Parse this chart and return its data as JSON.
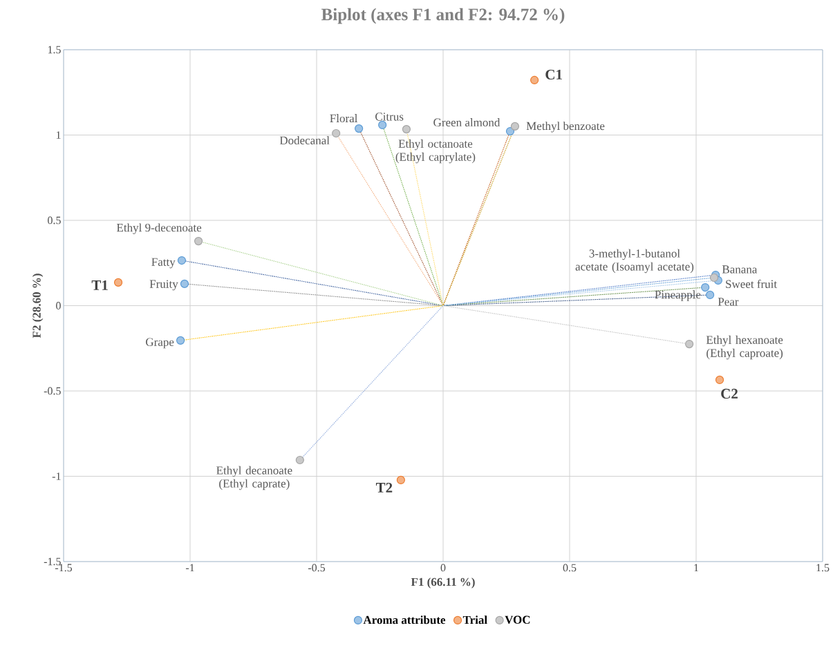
{
  "chart_data": {
    "type": "scatter",
    "title": "Biplot (axes F1 and F2: 94.72 %)",
    "xlabel": "F1 (66.11 %)",
    "ylabel": "F2 (28.60 %)",
    "xlim": [
      -1.5,
      1.5
    ],
    "ylim": [
      -1.5,
      1.5
    ],
    "xticks": [
      -1.5,
      -1,
      -0.5,
      0,
      0.5,
      1,
      1.5
    ],
    "yticks": [
      -1.5,
      -1,
      -0.5,
      0,
      0.5,
      1,
      1.5
    ],
    "grid": true,
    "legend": "bottom",
    "marker": "circle",
    "series": [
      {
        "type": "line",
        "line_style": "dotted",
        "marker": "none",
        "color": "#a0522d",
        "x": [
          0,
          -0.333
        ],
        "values": [
          0,
          1.038
        ]
      },
      {
        "type": "line",
        "line_style": "dotted",
        "marker": "none",
        "color": "#70ad47",
        "x": [
          0,
          -0.24
        ],
        "values": [
          0,
          1.059
        ]
      },
      {
        "type": "line",
        "line_style": "dotted",
        "marker": "none",
        "color": "#c55a11",
        "x": [
          0,
          0.265
        ],
        "values": [
          0,
          1.022
        ]
      },
      {
        "type": "line",
        "line_style": "dotted",
        "marker": "none",
        "color": "#2f5597",
        "x": [
          0,
          -1.033
        ],
        "values": [
          0,
          0.265
        ]
      },
      {
        "type": "line",
        "line_style": "dotted",
        "marker": "none",
        "color": "#7f7f7f",
        "x": [
          0,
          -1.022
        ],
        "values": [
          0,
          0.128
        ]
      },
      {
        "type": "line",
        "line_style": "dotted",
        "marker": "none",
        "color": "#ffc000",
        "x": [
          0,
          -1.038
        ],
        "values": [
          0,
          -0.204
        ]
      },
      {
        "type": "line",
        "line_style": "dotted",
        "marker": "none",
        "color": "#4472c4",
        "x": [
          0,
          1.077
        ],
        "values": [
          0,
          0.18
        ]
      },
      {
        "type": "line",
        "line_style": "dotted",
        "marker": "none",
        "color": "#9dc3e6",
        "x": [
          0,
          1.087
        ],
        "values": [
          0,
          0.148
        ]
      },
      {
        "type": "line",
        "line_style": "dotted",
        "marker": "none",
        "color": "#548235",
        "x": [
          0,
          1.036
        ],
        "values": [
          0,
          0.107
        ]
      },
      {
        "type": "line",
        "line_style": "dotted",
        "marker": "none",
        "color": "#264478",
        "x": [
          0,
          1.055
        ],
        "values": [
          0,
          0.063
        ]
      },
      {
        "type": "line",
        "line_style": "dotted",
        "marker": "none",
        "color": "#f4b183",
        "x": [
          0,
          -0.423
        ],
        "values": [
          0,
          1.01
        ]
      },
      {
        "type": "line",
        "line_style": "dotted",
        "marker": "none",
        "color": "#ffd966",
        "x": [
          0,
          -0.145
        ],
        "values": [
          0,
          1.034
        ]
      },
      {
        "type": "line",
        "line_style": "dotted",
        "marker": "none",
        "color": "#bf9000",
        "x": [
          0,
          0.284
        ],
        "values": [
          0,
          1.051
        ]
      },
      {
        "type": "line",
        "line_style": "dotted",
        "marker": "none",
        "color": "#a9d18e",
        "x": [
          0,
          -0.967
        ],
        "values": [
          0,
          0.378
        ]
      },
      {
        "type": "line",
        "line_style": "dotted",
        "marker": "none",
        "color": "#5b9bd5",
        "x": [
          0,
          1.071
        ],
        "values": [
          0,
          0.164
        ]
      },
      {
        "type": "line",
        "line_style": "dotted",
        "marker": "none",
        "color": "#c0c0c0",
        "x": [
          0,
          0.973
        ],
        "values": [
          0,
          -0.225
        ]
      },
      {
        "type": "line",
        "line_style": "dotted",
        "marker": "none",
        "color": "#8faadc",
        "x": [
          0,
          -0.566
        ],
        "values": [
          0,
          -0.905
        ]
      },
      {
        "name": "Aroma attribute",
        "color": "#5b9bd5",
        "x": [
          -0.333,
          -0.24,
          0.265,
          -1.033,
          -1.022,
          -1.038,
          1.077,
          1.087,
          1.036,
          1.055
        ],
        "values": [
          1.038,
          1.059,
          1.022,
          0.265,
          0.128,
          -0.204,
          0.18,
          0.148,
          0.107,
          0.063
        ]
      },
      {
        "name": "Trial",
        "color": "#ed7d31",
        "x": [
          0.361,
          -1.284,
          1.093,
          -0.167
        ],
        "values": [
          1.322,
          0.136,
          -0.435,
          -1.022
        ]
      },
      {
        "name": "VOC",
        "color": "#a5a5a5",
        "x": [
          -0.423,
          -0.145,
          0.284,
          -0.967,
          1.071,
          0.973,
          -0.566
        ],
        "values": [
          1.01,
          1.034,
          1.051,
          0.378,
          0.164,
          -0.225,
          -0.905
        ]
      }
    ],
    "annotations": [
      {
        "text": "Floral",
        "x": -0.333,
        "y": 1.038
      },
      {
        "text": "Citrus",
        "x": -0.24,
        "y": 1.059
      },
      {
        "text": "Green almond",
        "x": 0.265,
        "y": 1.022
      },
      {
        "text": "Fatty",
        "x": -1.033,
        "y": 0.265
      },
      {
        "text": "Fruity",
        "x": -1.022,
        "y": 0.128
      },
      {
        "text": "Grape",
        "x": -1.038,
        "y": -0.204
      },
      {
        "text": "Banana",
        "x": 1.077,
        "y": 0.18
      },
      {
        "text": "Sweet fruit",
        "x": 1.087,
        "y": 0.148
      },
      {
        "text": "Pineapple",
        "x": 1.036,
        "y": 0.107
      },
      {
        "text": "Pear",
        "x": 1.055,
        "y": 0.063
      },
      {
        "text": "Dodecanal",
        "x": -0.423,
        "y": 1.01
      },
      {
        "text": "Ethyl octanoate (Ethyl caprylate)",
        "x": -0.145,
        "y": 1.034
      },
      {
        "text": "Methyl benzoate",
        "x": 0.284,
        "y": 1.051
      },
      {
        "text": "Ethyl 9-decenoate",
        "x": -0.967,
        "y": 0.378
      },
      {
        "text": "3-methyl-1-butanol acetate (Isoamyl acetate)",
        "x": 1.071,
        "y": 0.164
      },
      {
        "text": "Ethyl hexanoate (Ethyl caproate)",
        "x": 0.973,
        "y": -0.225
      },
      {
        "text": "Ethyl decanoate (Ethyl caprate)",
        "x": -0.566,
        "y": -0.905
      },
      {
        "text": "C1",
        "x": 0.361,
        "y": 1.322
      },
      {
        "text": "T1",
        "x": -1.284,
        "y": 0.136
      },
      {
        "text": "C2",
        "x": 1.093,
        "y": -0.435
      },
      {
        "text": "T2",
        "x": -0.167,
        "y": -1.022
      }
    ]
  }
}
